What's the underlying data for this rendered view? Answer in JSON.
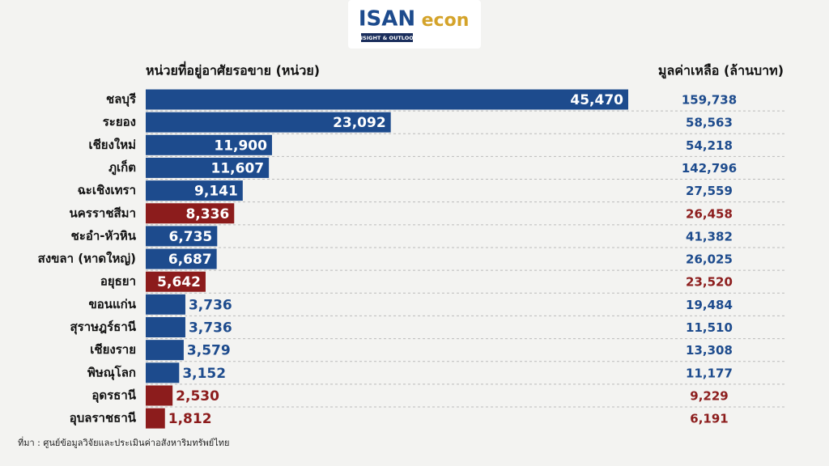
{
  "logo": {
    "brand": "ISAN",
    "tagline": "INSIGHT & OUTLOOK",
    "partner": "econ"
  },
  "chart_data": {
    "type": "bar",
    "categories": [
      "ชลบุรี",
      "ระยอง",
      "เชียงใหม่",
      "ภูเก็ต",
      "ฉะเชิงเทรา",
      "นครราชสีมา",
      "ชะอำ-หัวหิน",
      "สงขลา (หาดใหญ่)",
      "อยุธยา",
      "ขอนแก่น",
      "สุราษฎร์ธานี",
      "เชียงราย",
      "พิษณุโลก",
      "อุดรธานี",
      "อุบลราชธานี"
    ],
    "colors": [
      "#1d4b8d",
      "#1d4b8d",
      "#1d4b8d",
      "#1d4b8d",
      "#1d4b8d",
      "#8c1c1c",
      "#1d4b8d",
      "#1d4b8d",
      "#8c1c1c",
      "#1d4b8d",
      "#1d4b8d",
      "#1d4b8d",
      "#1d4b8d",
      "#8c1c1c",
      "#8c1c1c"
    ],
    "series": [
      {
        "name": "หน่วยที่อยู่อาศัยรอขาย (หน่วย)",
        "values": [
          45470,
          23092,
          11900,
          11607,
          9141,
          8336,
          6735,
          6687,
          5642,
          3736,
          3736,
          3579,
          3152,
          2530,
          1812
        ],
        "value_labels": [
          "45,470",
          "23,092",
          "11,900",
          "11,607",
          "9,141",
          "8,336",
          "6,735",
          "6,687",
          "5,642",
          "3,736",
          "3,736",
          "3,579",
          "3,152",
          "2,530",
          "1,812"
        ]
      },
      {
        "name": "มูลค่าเหลือ (ล้านบาท)",
        "values": [
          159738,
          58563,
          54218,
          142796,
          27559,
          26458,
          41382,
          26025,
          23520,
          19484,
          11510,
          13308,
          11177,
          9229,
          6191
        ],
        "value_labels": [
          "159,738",
          "58,563",
          "54,218",
          "142,796",
          "27,559",
          "26,458",
          "41,382",
          "26,025",
          "23,520",
          "19,484",
          "11,510",
          "13,308",
          "11,177",
          "9,229",
          "6,191"
        ]
      }
    ],
    "source": "ที่มา : ศูนย์ข้อมูลวิจัยและประเมินค่าอสังหาริมทรัพย์ไทย"
  }
}
